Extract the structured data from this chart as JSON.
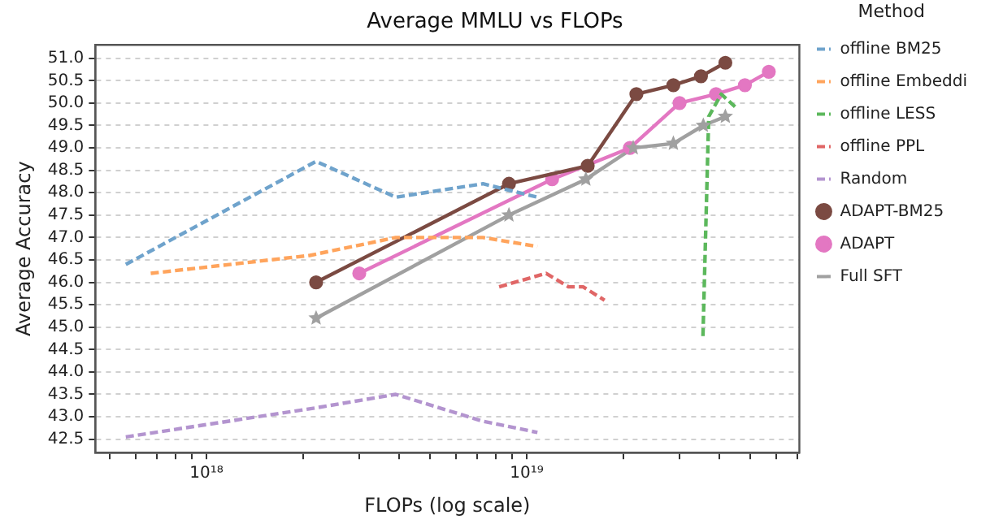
{
  "chart_data": {
    "type": "line",
    "title": "Average MMLU vs FLOPs",
    "xlabel": "FLOPs (log scale)",
    "ylabel": "Average Accuracy",
    "legend_title": "Method",
    "log": "x",
    "grid": "y",
    "legend": "right",
    "xlim": [
      4.5e+17,
      7.1e+19
    ],
    "xticks": [
      {
        "value": 5e+17,
        "label": null
      },
      {
        "value": 6e+17,
        "label": null
      },
      {
        "value": 7e+17,
        "label": null
      },
      {
        "value": 8e+17,
        "label": null
      },
      {
        "value": 9e+17,
        "label": null
      },
      {
        "value": 1e+18,
        "label": "10¹⁸"
      },
      {
        "value": 2e+18,
        "label": null
      },
      {
        "value": 3e+18,
        "label": null
      },
      {
        "value": 4e+18,
        "label": null
      },
      {
        "value": 5e+18,
        "label": null
      },
      {
        "value": 6e+18,
        "label": null
      },
      {
        "value": 7e+18,
        "label": null
      },
      {
        "value": 8e+18,
        "label": null
      },
      {
        "value": 9e+18,
        "label": null
      },
      {
        "value": 1e+19,
        "label": "10¹⁹"
      },
      {
        "value": 2e+19,
        "label": null
      },
      {
        "value": 3e+19,
        "label": null
      },
      {
        "value": 4e+19,
        "label": null
      },
      {
        "value": 5e+19,
        "label": null
      },
      {
        "value": 6e+19,
        "label": null
      },
      {
        "value": 7e+19,
        "label": null
      }
    ],
    "ylim": [
      42.2,
      51.3
    ],
    "yticks": [
      {
        "value": 42.5,
        "label": "42.5"
      },
      {
        "value": 43,
        "label": "43.0"
      },
      {
        "value": 43.5,
        "label": "43.5"
      },
      {
        "value": 44,
        "label": "44.0"
      },
      {
        "value": 44.5,
        "label": "44.5"
      },
      {
        "value": 45,
        "label": "45.0"
      },
      {
        "value": 45.5,
        "label": "45.5"
      },
      {
        "value": 46,
        "label": "46.0"
      },
      {
        "value": 46.5,
        "label": "46.5"
      },
      {
        "value": 47,
        "label": "47.0"
      },
      {
        "value": 47.5,
        "label": "47.5"
      },
      {
        "value": 48,
        "label": "48.0"
      },
      {
        "value": 48.5,
        "label": "48.5"
      },
      {
        "value": 49,
        "label": "49.0"
      },
      {
        "value": 49.5,
        "label": "49.5"
      },
      {
        "value": 50,
        "label": "50.0"
      },
      {
        "value": 50.5,
        "label": "50.5"
      },
      {
        "value": 51,
        "label": "51.0"
      }
    ],
    "series": [
      {
        "name": "offline BM25",
        "color": "#6fa3cc",
        "line_style": "dashed",
        "marker": "none",
        "x": [
          5.6e+17,
          2.2e+18,
          3.9e+18,
          7.3e+18,
          1.08e+19
        ],
        "values": [
          46.4,
          48.7,
          47.9,
          48.2,
          47.9
        ]
      },
      {
        "name": "offline Embeddi",
        "color": "#ffa45c",
        "line_style": "dashed",
        "marker": "none",
        "x": [
          6.7e+17,
          2.1e+18,
          3.9e+18,
          7.3e+18,
          1.08e+19
        ],
        "values": [
          46.2,
          46.6,
          47.0,
          47.0,
          46.8
        ]
      },
      {
        "name": "offline LESS",
        "color": "#5cb85c",
        "line_style": "dashed",
        "marker": "none",
        "x": [
          3.55e+19,
          3.7e+19,
          4.05e+19,
          4.5e+19
        ],
        "values": [
          44.8,
          49.7,
          50.2,
          49.9
        ]
      },
      {
        "name": "offline PPL",
        "color": "#e06666",
        "line_style": "dashed",
        "marker": "none",
        "x": [
          8.2e+18,
          1.15e+19,
          1.35e+19,
          1.5e+19,
          1.75e+19
        ],
        "values": [
          45.9,
          46.2,
          45.9,
          45.9,
          45.6
        ]
      },
      {
        "name": "Random",
        "color": "#b394cf",
        "line_style": "dashed",
        "marker": "none",
        "x": [
          5.6e+17,
          2.2e+18,
          3.9e+18,
          7.3e+18,
          1.08e+19
        ],
        "values": [
          42.55,
          43.2,
          43.5,
          42.9,
          42.65
        ]
      },
      {
        "name": "ADAPT-BM25",
        "color": "#7b4a42",
        "line_style": "solid",
        "marker": "circle",
        "x": [
          2.2e+18,
          8.8e+18,
          1.55e+19,
          2.2e+19,
          2.87e+19,
          3.5e+19,
          4.17e+19
        ],
        "values": [
          46.0,
          48.2,
          48.6,
          50.2,
          50.4,
          50.6,
          50.9
        ]
      },
      {
        "name": "ADAPT",
        "color": "#e377c2",
        "line_style": "solid",
        "marker": "circle",
        "x": [
          3e+18,
          1.2e+19,
          2.1e+19,
          3e+19,
          3.9e+19,
          4.8e+19,
          5.7e+19
        ],
        "values": [
          46.2,
          48.3,
          49.0,
          50.0,
          50.2,
          50.4,
          50.7
        ]
      },
      {
        "name": "Full SFT",
        "color": "#a0a0a0",
        "line_style": "solid",
        "marker": "star",
        "x": [
          2.2e+18,
          8.8e+18,
          1.53e+19,
          2.15e+19,
          2.87e+19,
          3.56e+19,
          4.17e+19
        ],
        "values": [
          45.2,
          47.5,
          48.3,
          49.0,
          49.1,
          49.5,
          49.7
        ]
      }
    ]
  }
}
